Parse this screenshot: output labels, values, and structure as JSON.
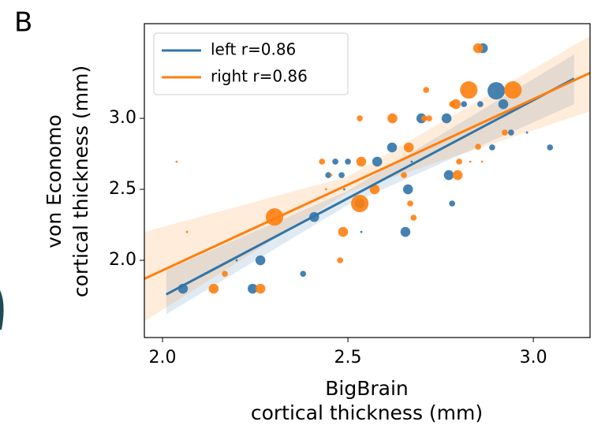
{
  "panel_label": "B",
  "chart_data": {
    "type": "scatter",
    "x_label": [
      "BigBrain",
      "cortical thickness (mm)"
    ],
    "y_label": [
      "von Economo",
      "cortical thickness (mm)"
    ],
    "xlim": [
      1.951,
      3.153
    ],
    "ylim": [
      1.456,
      3.667
    ],
    "xticks": [
      {
        "value": 2.0,
        "label": "2.0"
      },
      {
        "value": 2.5,
        "label": "2.5"
      },
      {
        "value": 3.0,
        "label": "3.0"
      }
    ],
    "yticks": [
      {
        "value": 2.0,
        "label": "2.0"
      },
      {
        "value": 2.5,
        "label": "2.5"
      },
      {
        "value": 3.0,
        "label": "3.0"
      }
    ],
    "legend": "upper left",
    "series": [
      {
        "name": "left r=0.86",
        "color": "#3274a8",
        "x": [
          2.055,
          2.2,
          2.264,
          2.243,
          2.379,
          2.409,
          2.447,
          2.466,
          2.483,
          2.49,
          2.5,
          2.536,
          2.532,
          2.579,
          2.619,
          2.655,
          2.662,
          2.672,
          2.698,
          2.766,
          2.772,
          2.781,
          2.813,
          2.864,
          2.857,
          2.889,
          2.9,
          2.919,
          2.94,
          2.983,
          3.045
        ],
        "y": [
          1.8,
          2.0,
          2.0,
          1.8,
          1.905,
          2.305,
          2.6,
          2.695,
          2.6,
          2.5,
          2.695,
          2.2,
          2.4,
          2.695,
          2.795,
          2.2,
          2.5,
          2.695,
          3.0,
          3.0,
          2.6,
          2.4,
          3.1,
          3.494,
          3.1,
          2.795,
          3.194,
          3.1,
          2.9,
          2.9,
          2.795
        ],
        "sizes": [
          80,
          4,
          80,
          80,
          30,
          80,
          30,
          30,
          30,
          4,
          30,
          4,
          80,
          80,
          80,
          80,
          80,
          4,
          80,
          80,
          80,
          30,
          30,
          80,
          30,
          30,
          250,
          80,
          30,
          4,
          30
        ],
        "fit": {
          "x": [
            2.01,
            3.11
          ],
          "y": [
            1.76,
            3.28
          ]
        },
        "band": {
          "x": [
            2.01,
            2.5,
            3.11
          ],
          "lower": [
            1.62,
            2.39,
            3.1
          ],
          "upper": [
            1.93,
            2.49,
            3.45
          ]
        }
      },
      {
        "name": "right r=0.86",
        "color": "#ff7f0e",
        "x": [
          2.038,
          2.066,
          2.138,
          2.168,
          2.264,
          2.302,
          2.479,
          2.487,
          2.43,
          2.441,
          2.455,
          2.532,
          2.536,
          2.532,
          2.572,
          2.62,
          2.651,
          2.664,
          2.668,
          2.677,
          2.711,
          2.706,
          2.719,
          2.781,
          2.791,
          2.796,
          2.8,
          2.796,
          2.826,
          2.83,
          2.851,
          2.851,
          2.862,
          2.923,
          2.945
        ],
        "y": [
          2.695,
          2.2,
          1.8,
          1.905,
          1.8,
          2.305,
          2.0,
          2.2,
          2.695,
          2.5,
          2.6,
          3.0,
          2.695,
          2.4,
          2.5,
          3.0,
          2.6,
          2.795,
          2.4,
          2.3,
          3.2,
          3.0,
          3.0,
          3.1,
          3.1,
          2.695,
          2.695,
          2.6,
          3.2,
          2.695,
          2.8,
          3.494,
          2.695,
          2.9,
          3.2
        ],
        "sizes": [
          4,
          4,
          80,
          30,
          80,
          250,
          30,
          80,
          30,
          4,
          4,
          30,
          80,
          250,
          80,
          80,
          30,
          80,
          30,
          30,
          30,
          30,
          30,
          30,
          80,
          4,
          30,
          80,
          250,
          4,
          30,
          80,
          4,
          30,
          250
        ],
        "fit": {
          "x": [
            1.951,
            3.153
          ],
          "y": [
            1.87,
            3.32
          ]
        },
        "band": {
          "x": [
            1.951,
            2.5,
            3.153
          ],
          "lower": [
            1.57,
            2.48,
            3.05
          ],
          "upper": [
            2.2,
            2.59,
            3.58
          ]
        }
      }
    ]
  }
}
